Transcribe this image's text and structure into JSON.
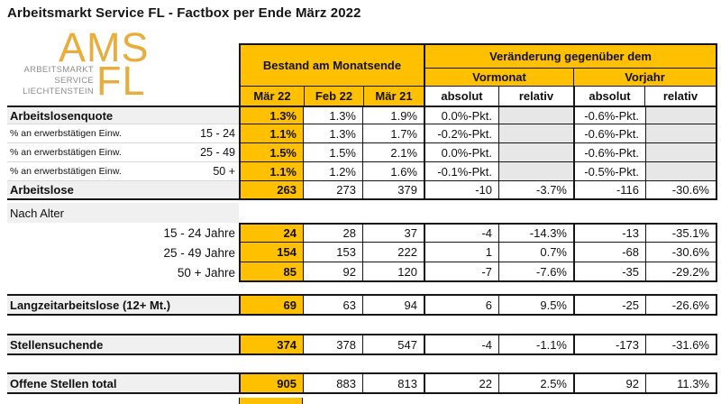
{
  "title": "Arbeitsmarkt Service FL - Factbox per Ende März 2022",
  "logo": {
    "acronym": "AMS",
    "fl": "FL",
    "lines": [
      "ARBEITSMARKT",
      "SERVICE",
      "LIECHTENSTEIN"
    ]
  },
  "header": {
    "bestand": "Bestand am Monatsende",
    "veraenderung": "Veränderung gegenüber dem",
    "vormonat": "Vormonat",
    "vorjahr": "Vorjahr",
    "col_maer22": "Mär 22",
    "col_feb22": "Feb 22",
    "col_maer21": "Mär 21",
    "absolut": "absolut",
    "relativ": "relativ"
  },
  "rows": [
    {
      "label": "Arbeitslosenquote",
      "values": [
        "1.3%",
        "1.3%",
        "1.9%",
        "0.0%-Pkt.",
        "",
        "-0.6%-Pkt.",
        ""
      ]
    },
    {
      "label": "% an erwerbstätigen Einw.",
      "age": "15 - 24",
      "values": [
        "1.1%",
        "1.3%",
        "1.7%",
        "-0.2%-Pkt.",
        "",
        "-0.6%-Pkt.",
        ""
      ]
    },
    {
      "label": "% an erwerbstätigen Einw.",
      "age": "25 - 49",
      "values": [
        "1.5%",
        "1.5%",
        "2.1%",
        "0.0%-Pkt.",
        "",
        "-0.6%-Pkt.",
        ""
      ]
    },
    {
      "label": "% an erwerbstätigen Einw.",
      "age": "50 +",
      "values": [
        "1.1%",
        "1.2%",
        "1.6%",
        "-0.1%-Pkt.",
        "",
        "-0.5%-Pkt.",
        ""
      ]
    },
    {
      "label": "Arbeitslose",
      "values": [
        "263",
        "273",
        "379",
        "-10",
        "-3.7%",
        "-116",
        "-30.6%"
      ]
    },
    {
      "label": "Nach Alter"
    },
    {
      "label": "15 - 24 Jahre",
      "values": [
        "24",
        "28",
        "37",
        "-4",
        "-14.3%",
        "-13",
        "-35.1%"
      ]
    },
    {
      "label": "25 - 49 Jahre",
      "values": [
        "154",
        "153",
        "222",
        "1",
        "0.7%",
        "-68",
        "-30.6%"
      ]
    },
    {
      "label": "50 + Jahre",
      "values": [
        "85",
        "92",
        "120",
        "-7",
        "-7.6%",
        "-35",
        "-29.2%"
      ]
    },
    {
      "label": "Langzeitarbeitslose (12+ Mt.)",
      "values": [
        "69",
        "63",
        "94",
        "6",
        "9.5%",
        "-25",
        "-26.6%"
      ]
    },
    {
      "label": "Stellensuchende",
      "values": [
        "374",
        "378",
        "547",
        "-4",
        "-1.1%",
        "-173",
        "-31.6%"
      ]
    },
    {
      "label": "Offene Stellen total",
      "values": [
        "905",
        "883",
        "813",
        "22",
        "2.5%",
        "92",
        "11.3%"
      ]
    }
  ],
  "colors": {
    "table_gold": "#FFC000",
    "logo_gold": "#E9AD3C",
    "label_bg": "#F0F0F0",
    "empty_cell": "#E7E7E7",
    "border": "#151515"
  }
}
